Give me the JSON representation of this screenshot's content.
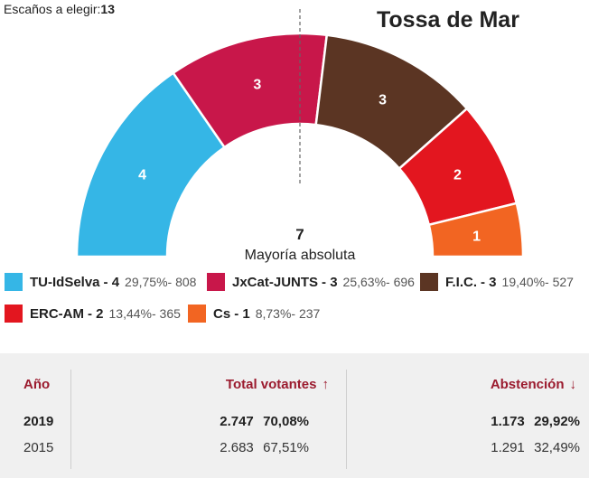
{
  "header": {
    "seats_label": "Escaños a elegir:",
    "seats_value": "13",
    "title": "Tossa de Mar"
  },
  "chart_data": {
    "type": "pie",
    "subtype": "parliament-semicircle",
    "total_seats": 13,
    "majority_value": "7",
    "majority_label": "Mayoría absoluta",
    "parties": [
      {
        "name": "TU-IdSelva",
        "seats": 4,
        "seats_text": "- 4",
        "percent": "29,75%",
        "votes": "808",
        "stats_text": "29,75%- 808",
        "color": "#35b6e6"
      },
      {
        "name": "JxCat-JUNTS",
        "seats": 3,
        "seats_text": "- 3",
        "percent": "25,63%",
        "votes": "696",
        "stats_text": "25,63%- 696",
        "color": "#c8174a"
      },
      {
        "name": "F.I.C.",
        "seats": 3,
        "seats_text": "- 3",
        "percent": "19,40%",
        "votes": "527",
        "stats_text": "19,40%- 527",
        "color": "#5b3523"
      },
      {
        "name": "ERC-AM",
        "seats": 2,
        "seats_text": "- 2",
        "percent": "13,44%",
        "votes": "365",
        "stats_text": "13,44%- 365",
        "color": "#e3161f"
      },
      {
        "name": "Cs",
        "seats": 1,
        "seats_text": "- 1",
        "percent": "8,73%",
        "votes": "237",
        "stats_text": "8,73%- 237",
        "color": "#f26522"
      }
    ]
  },
  "results_table": {
    "headers": {
      "year": "Año",
      "voters": "Total votantes",
      "voters_arrow": "↑",
      "abstention": "Abstención",
      "abstention_arrow": "↓"
    },
    "rows": [
      {
        "year": "2019",
        "voters": "2.747",
        "voters_pct": "70,08%",
        "abstention": "1.173",
        "abstention_pct": "29,92%"
      },
      {
        "year": "2015",
        "voters": "2.683",
        "voters_pct": "67,51%",
        "abstention": "1.291",
        "abstention_pct": "32,49%"
      }
    ]
  }
}
